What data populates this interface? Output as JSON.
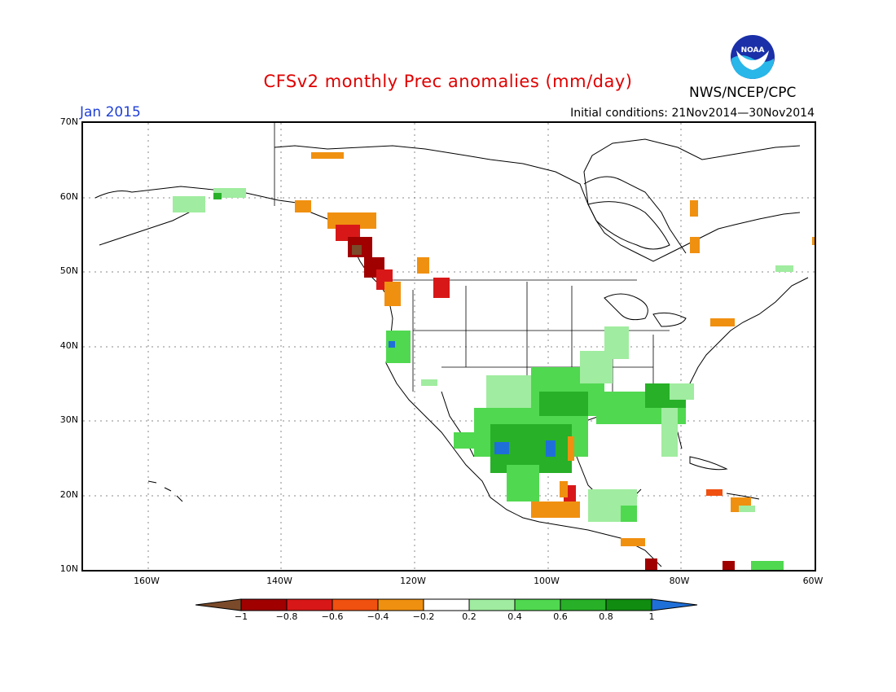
{
  "header": {
    "title": "CFSv2 monthly Prec anomalies (mm/day)",
    "agency": "NWS/NCEP/CPC",
    "month": "Jan 2015",
    "initial_conditions": "Initial conditions: 21Nov2014—30Nov2014",
    "logo_text": "NOAA"
  },
  "map": {
    "lat_labels": [
      "70N",
      "60N",
      "50N",
      "40N",
      "30N",
      "20N",
      "10N"
    ],
    "lon_labels": [
      "160W",
      "140W",
      "120W",
      "100W",
      "80W",
      "60W"
    ]
  },
  "legend": {
    "labels": [
      "−1",
      "−0.8",
      "−0.6",
      "−0.4",
      "−0.2",
      "0.2",
      "0.4",
      "0.6",
      "0.8",
      "1"
    ],
    "colors": [
      "#7a4a2a",
      "#a00000",
      "#d81818",
      "#f05010",
      "#f09010",
      "#ffffff",
      "#a0eca0",
      "#50d850",
      "#28b028",
      "#108c10",
      "#1f6fd8"
    ]
  }
}
